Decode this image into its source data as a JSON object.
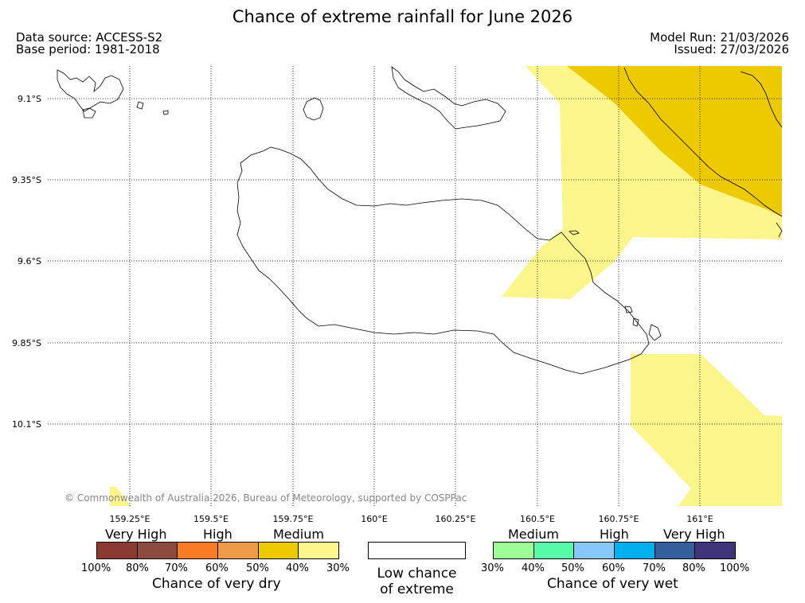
{
  "title": "Chance of extreme rainfall for June 2026",
  "data_source": "Data source: ACCESS-S2",
  "base_period": "Base period: 1981-2018",
  "model_run": "Model Run: 21/03/2026",
  "issued": "Issued: 27/03/2026",
  "copyright": "© Commonwealth of Australia 2026, Bureau of Meteorology, supported by COSPPac",
  "latitudes": [
    "9.1°S",
    "9.35°S",
    "9.6°S",
    "9.85°S",
    "10.1°S"
  ],
  "longitudes": [
    "159.25°E",
    "159.5°E",
    "159.75°E",
    "160°E",
    "160.25°E",
    "160.5°E",
    "160.75°E",
    "161°E"
  ],
  "legend": {
    "dry": {
      "tiers": [
        "Very High",
        "High",
        "Medium"
      ],
      "percent_labels": [
        "100%",
        "80%",
        "70%",
        "60%",
        "50%",
        "40%",
        "30%"
      ],
      "caption": "Chance of very dry",
      "colors": [
        "#8b3a32",
        "#8c4b3c",
        "#f87c24",
        "#ee9b49",
        "#edc900",
        "#fcf58c"
      ]
    },
    "low": {
      "line1": "Low chance",
      "line2": "of extreme"
    },
    "wet": {
      "tiers": [
        "Medium",
        "High",
        "Very High"
      ],
      "percent_labels": [
        "30%",
        "40%",
        "50%",
        "60%",
        "70%",
        "80%",
        "100%"
      ],
      "caption": "Chance of very wet",
      "colors": [
        "#9dfd96",
        "#55fba6",
        "#86c8fb",
        "#00b0ee",
        "#355f9a",
        "#40357a"
      ]
    }
  },
  "map_colors": {
    "medium_dry": "#fcf58c",
    "medium_dry_high": "#edc900"
  }
}
